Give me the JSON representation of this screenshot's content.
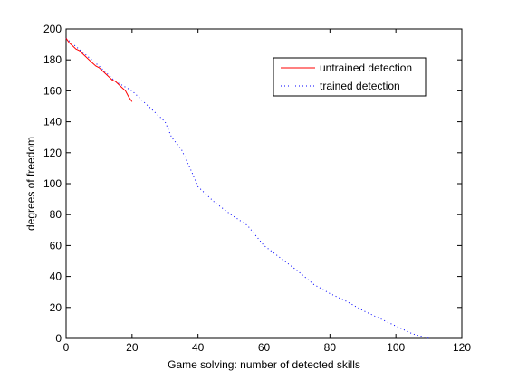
{
  "chart_data": {
    "type": "line",
    "title": "",
    "xlabel": "Game solving: number of detected skills",
    "ylabel": "degrees of freedom",
    "xlim": [
      0,
      120
    ],
    "ylim": [
      0,
      200
    ],
    "xticks": [
      0,
      20,
      40,
      60,
      80,
      100,
      120
    ],
    "yticks": [
      0,
      20,
      40,
      60,
      80,
      100,
      120,
      140,
      160,
      180,
      200
    ],
    "grid": false,
    "legend_position": "top-right",
    "series": [
      {
        "name": "untrained detection",
        "color": "#ff0000",
        "style": "solid",
        "x": [
          0,
          1,
          2,
          3,
          4,
          5,
          6,
          7,
          8,
          9,
          10,
          11,
          12,
          13,
          14,
          15,
          16,
          17,
          18,
          19,
          20
        ],
        "y": [
          194,
          191,
          189,
          187,
          186,
          184,
          182,
          180,
          178,
          176,
          175,
          173,
          171,
          169,
          167,
          166,
          164,
          162,
          160,
          156,
          153
        ]
      },
      {
        "name": "trained detection",
        "color": "#0000ff",
        "style": "dotted",
        "x": [
          0,
          5,
          10,
          15,
          20,
          25,
          30,
          32,
          35,
          38,
          40,
          45,
          50,
          55,
          60,
          65,
          70,
          75,
          80,
          85,
          90,
          95,
          100,
          105,
          110
        ],
        "y": [
          194,
          185,
          176,
          166,
          160,
          150,
          140,
          130,
          122,
          108,
          98,
          88,
          80,
          73,
          60,
          52,
          44,
          35,
          29,
          24,
          18,
          13,
          8,
          3,
          0
        ]
      }
    ]
  }
}
